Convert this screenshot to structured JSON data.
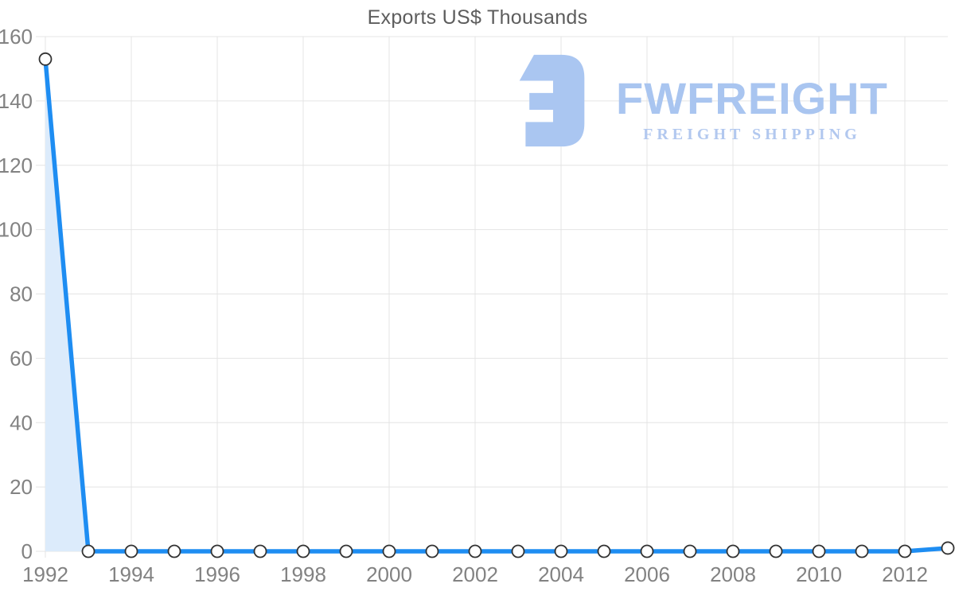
{
  "chart_data": {
    "type": "line",
    "title": "Exports US$ Thousands",
    "x": [
      1992,
      1993,
      1994,
      1995,
      1996,
      1997,
      1998,
      1999,
      2000,
      2001,
      2002,
      2003,
      2004,
      2005,
      2006,
      2007,
      2008,
      2009,
      2010,
      2011,
      2012,
      2013
    ],
    "values": [
      153,
      0,
      0,
      0,
      0,
      0,
      0,
      0,
      0,
      0,
      0,
      0,
      0,
      0,
      0,
      0,
      0,
      0,
      0,
      0,
      0,
      1
    ],
    "xlabel": "",
    "ylabel": "",
    "ylim": [
      0,
      160
    ],
    "yticks": [
      0,
      20,
      40,
      60,
      80,
      100,
      120,
      140,
      160
    ],
    "xticks": [
      1992,
      1994,
      1996,
      1998,
      2000,
      2002,
      2004,
      2006,
      2008,
      2010,
      2012
    ],
    "grid": "on",
    "legend": "none",
    "marker": "open-circle",
    "colors": {
      "line": "#1e8df2",
      "area_fill": "#dcebfb",
      "marker_fill": "#ffffff",
      "marker_stroke": "#333333",
      "gridline": "#e4e4e4",
      "tick_label": "#828282",
      "title": "#5d5d5d"
    }
  },
  "watermark": {
    "brand": "FWFREIGHT",
    "tagline": "FREIGHT SHIPPING",
    "color": "#a9c5f0",
    "logo_icon": "fwfreight-f-mark"
  }
}
